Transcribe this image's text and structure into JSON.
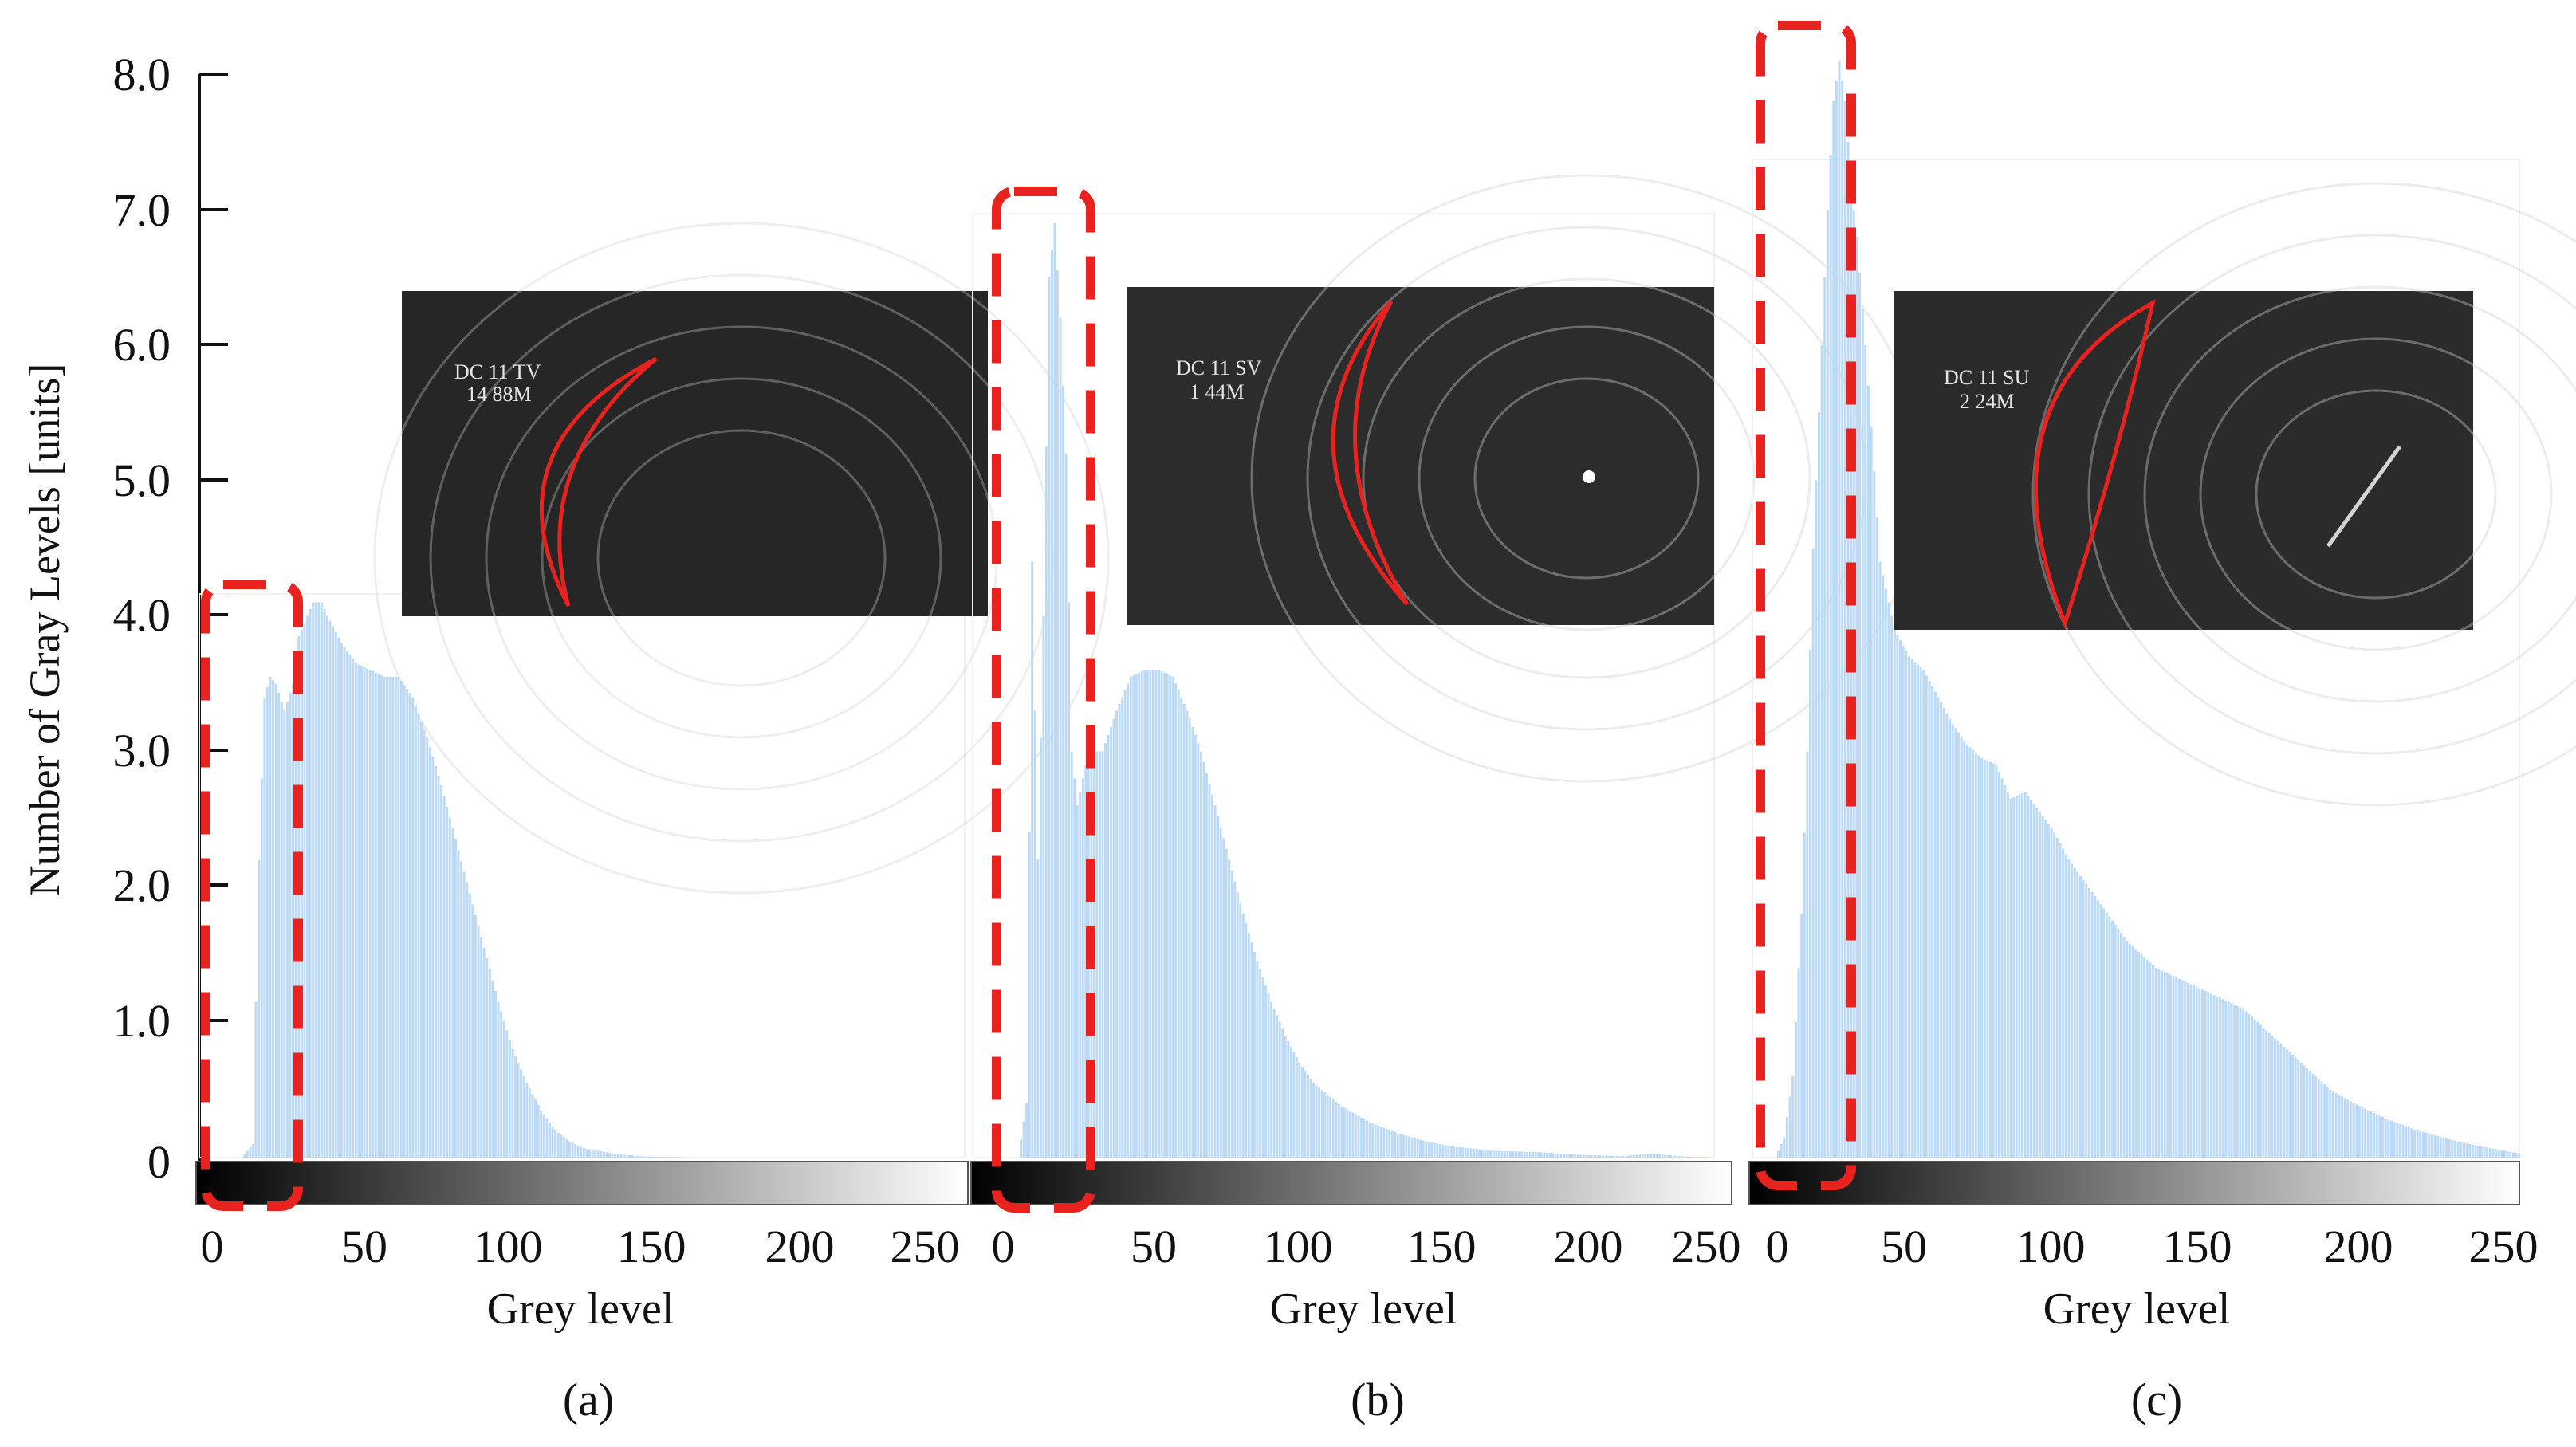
{
  "figure": {
    "ylabel": "Number of Gray Levels [units]",
    "yticks": [
      "8.0",
      "7.0",
      "6.0",
      "5.0",
      "4.0",
      "3.0",
      "2.0",
      "1.0",
      "0"
    ],
    "colors": {
      "bar": "#bcd9f5",
      "highlight": "#e8231f",
      "axis": "#111111",
      "inset_bg": "#262626",
      "inset_ring": "#cfcfcf"
    }
  },
  "chart_data": [
    {
      "type": "bar",
      "panel": "(a)",
      "xlabel": "Grey level",
      "ylabel": "Number of Gray Levels [units]",
      "ylim": [
        0,
        8
      ],
      "xlim": [
        0,
        255
      ],
      "xticks": [
        "0",
        "50",
        "100",
        "150",
        "200",
        "250"
      ],
      "grid": false,
      "inset_text": [
        "DC 11 TV",
        "14 88M"
      ],
      "series": [
        {
          "x": [
            0,
            5,
            10,
            14,
            16,
            18,
            20,
            22,
            25,
            28,
            30,
            33,
            35,
            38,
            40,
            45,
            50,
            55,
            60,
            65,
            70,
            75,
            80,
            85,
            90,
            95,
            100,
            105,
            110,
            115,
            120,
            125,
            130,
            140,
            150,
            170,
            200,
            255
          ],
          "values": [
            0,
            0,
            0,
            0.1,
            2.2,
            3.4,
            3.55,
            3.5,
            3.3,
            3.5,
            3.85,
            4.0,
            4.1,
            4.1,
            4.0,
            3.8,
            3.65,
            3.6,
            3.55,
            3.55,
            3.4,
            3.1,
            2.75,
            2.35,
            1.95,
            1.55,
            1.15,
            0.8,
            0.55,
            0.35,
            0.2,
            0.12,
            0.07,
            0.03,
            0.01,
            0,
            0,
            0
          ]
        }
      ]
    },
    {
      "type": "bar",
      "panel": "(b)",
      "xlabel": "Grey level",
      "ylabel": "Number of Gray Levels [units]",
      "ylim": [
        0,
        8
      ],
      "xlim": [
        0,
        255
      ],
      "xticks": [
        "0",
        "50",
        "100",
        "150",
        "200",
        "250"
      ],
      "grid": false,
      "inset_text": [
        "DC 11 SV",
        "1 44M"
      ],
      "series": [
        {
          "x": [
            0,
            5,
            8,
            10,
            12,
            14,
            16,
            18,
            20,
            22,
            24,
            26,
            28,
            30,
            35,
            40,
            45,
            50,
            55,
            60,
            65,
            70,
            75,
            80,
            85,
            90,
            95,
            100,
            105,
            110,
            120,
            130,
            140,
            150,
            160,
            175,
            190,
            205,
            220,
            230,
            240,
            255
          ],
          "values": [
            0,
            0,
            0.4,
            4.4,
            2.2,
            4.0,
            6.5,
            6.9,
            6.2,
            5.2,
            3.0,
            2.6,
            2.8,
            3.0,
            3.0,
            3.3,
            3.55,
            3.6,
            3.6,
            3.55,
            3.3,
            3.0,
            2.6,
            2.2,
            1.8,
            1.45,
            1.15,
            0.9,
            0.7,
            0.55,
            0.38,
            0.26,
            0.18,
            0.12,
            0.08,
            0.05,
            0.04,
            0.02,
            0.01,
            0.03,
            0.01,
            0
          ]
        }
      ]
    },
    {
      "type": "bar",
      "panel": "(c)",
      "xlabel": "Grey level",
      "ylabel": "Number of Gray Levels [units]",
      "ylim": [
        0,
        8
      ],
      "xlim": [
        0,
        255
      ],
      "xticks": [
        "0",
        "50",
        "100",
        "150",
        "200",
        "250"
      ],
      "grid": false,
      "inset_text": [
        "DC 11 SU",
        "2 24M"
      ],
      "series": [
        {
          "x": [
            0,
            2,
            5,
            8,
            10,
            12,
            15,
            17,
            19,
            21,
            23,
            25,
            27,
            30,
            32,
            35,
            40,
            45,
            50,
            55,
            60,
            65,
            70,
            75,
            80,
            85,
            90,
            95,
            100,
            110,
            120,
            130,
            140,
            150,
            155,
            160,
            165,
            170,
            180,
            190,
            200,
            210,
            220,
            230,
            240,
            250,
            255
          ],
          "values": [
            0.05,
            0.15,
            0.6,
            1.8,
            3.0,
            4.5,
            6.0,
            7.0,
            7.8,
            8.1,
            7.8,
            7.2,
            6.8,
            6.0,
            5.4,
            4.4,
            3.9,
            3.7,
            3.6,
            3.4,
            3.2,
            3.05,
            2.95,
            2.9,
            2.65,
            2.7,
            2.55,
            2.4,
            2.2,
            1.9,
            1.6,
            1.4,
            1.3,
            1.2,
            1.15,
            1.1,
            1.0,
            0.9,
            0.7,
            0.5,
            0.38,
            0.28,
            0.2,
            0.14,
            0.09,
            0.05,
            0.03
          ]
        }
      ]
    }
  ]
}
